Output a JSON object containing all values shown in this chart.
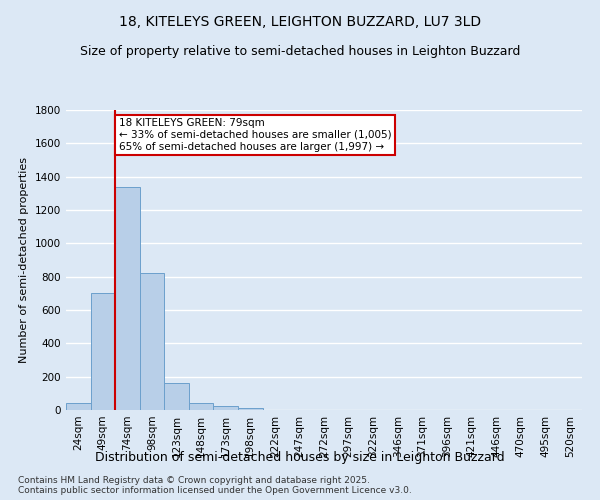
{
  "title1": "18, KITELEYS GREEN, LEIGHTON BUZZARD, LU7 3LD",
  "title2": "Size of property relative to semi-detached houses in Leighton Buzzard",
  "xlabel": "Distribution of semi-detached houses by size in Leighton Buzzard",
  "ylabel": "Number of semi-detached properties",
  "bin_labels": [
    "24sqm",
    "49sqm",
    "74sqm",
    "98sqm",
    "123sqm",
    "148sqm",
    "173sqm",
    "198sqm",
    "222sqm",
    "247sqm",
    "272sqm",
    "297sqm",
    "322sqm",
    "346sqm",
    "371sqm",
    "396sqm",
    "421sqm",
    "446sqm",
    "470sqm",
    "495sqm",
    "520sqm"
  ],
  "bar_values": [
    40,
    700,
    1340,
    820,
    160,
    40,
    25,
    10,
    0,
    0,
    0,
    0,
    0,
    0,
    0,
    0,
    0,
    0,
    0,
    0,
    0
  ],
  "bar_color": "#b8cfe8",
  "bar_edgecolor": "#6ca0cc",
  "property_bin_index": 2,
  "annotation_title": "18 KITELEYS GREEN: 79sqm",
  "annotation_line1": "← 33% of semi-detached houses are smaller (1,005)",
  "annotation_line2": "65% of semi-detached houses are larger (1,997) →",
  "vline_color": "#cc0000",
  "annotation_box_color": "#cc0000",
  "ylim": [
    0,
    1800
  ],
  "yticks": [
    0,
    200,
    400,
    600,
    800,
    1000,
    1200,
    1400,
    1600,
    1800
  ],
  "footer": "Contains HM Land Registry data © Crown copyright and database right 2025.\nContains public sector information licensed under the Open Government Licence v3.0.",
  "bg_color": "#dce8f5",
  "plot_bg_color": "#dce8f5",
  "grid_color": "#ffffff",
  "title1_fontsize": 10,
  "title2_fontsize": 9,
  "xlabel_fontsize": 9,
  "ylabel_fontsize": 8,
  "tick_fontsize": 7.5,
  "annotation_fontsize": 7.5,
  "footer_fontsize": 6.5
}
